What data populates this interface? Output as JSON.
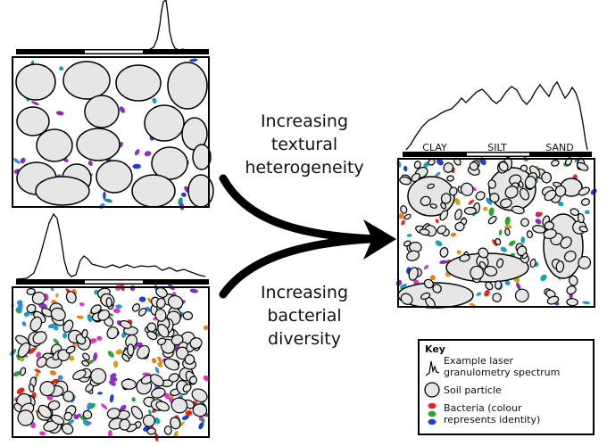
{
  "arrow_top_label": [
    "Increasing",
    "textural",
    "heterogeneity"
  ],
  "arrow_bottom_label": [
    "Increasing",
    "bacterial",
    "diversity"
  ],
  "size_bands": [
    "CLAY",
    "SILT",
    "SAND"
  ],
  "key": {
    "title": "Key",
    "spectrum_label": [
      "Example laser",
      "granulometry spectrum"
    ],
    "particle_label": "Soil particle",
    "bacteria_label": [
      "Bacteria (colour",
      "represents identity)"
    ]
  },
  "colors": {
    "particle_fill": "#e6e6e6",
    "bacteria": [
      "#e8231c",
      "#2aa534",
      "#1d3fd6",
      "#f07a14",
      "#d4a21a",
      "#16a3b8",
      "#8e2bc4",
      "#e033c4",
      "#2a8fd6"
    ]
  }
}
